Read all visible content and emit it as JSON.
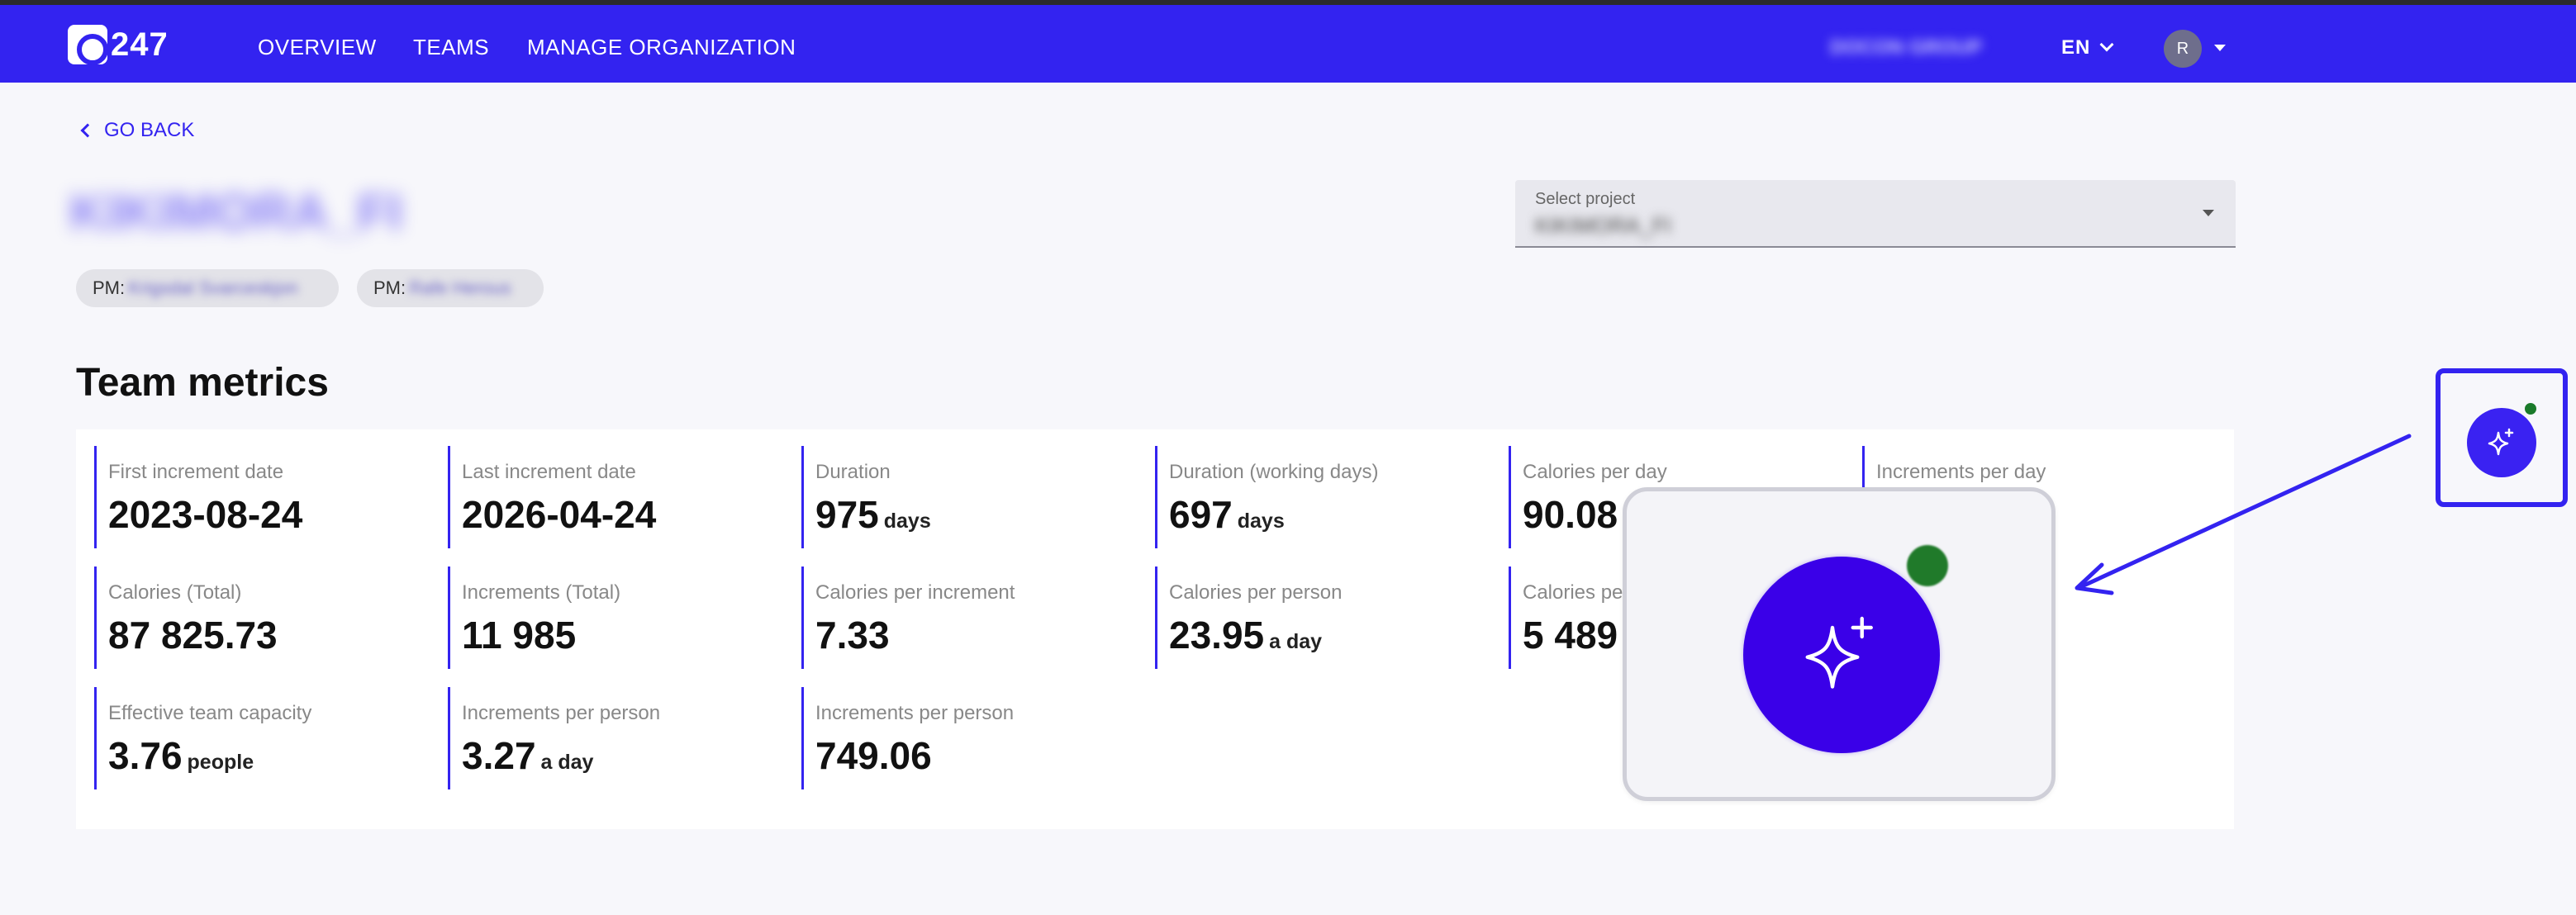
{
  "app": {
    "logo_text": "247"
  },
  "nav": {
    "items": [
      "OVERVIEW",
      "TEAMS",
      "MANAGE ORGANIZATION"
    ],
    "org": "DOCON GROUP",
    "lang": "EN",
    "avatar_initial": "R"
  },
  "header": {
    "go_back": "GO BACK",
    "project_title": "KIKIMORA_FI",
    "pm_prefix": "PM:",
    "pms": [
      "Krigsdal Svarceskjon",
      "Rafe Herous"
    ]
  },
  "select_project": {
    "label": "Select project",
    "value": "KIKIMORA_FI"
  },
  "metrics": {
    "title": "Team metrics",
    "items": [
      {
        "label": "First increment date",
        "value": "2023-08-24",
        "unit": ""
      },
      {
        "label": "Last increment date",
        "value": "2026-04-24",
        "unit": ""
      },
      {
        "label": "Duration",
        "value": "975",
        "unit": "days"
      },
      {
        "label": "Duration (working days)",
        "value": "697",
        "unit": "days"
      },
      {
        "label": "Calories per day",
        "value": "90.08",
        "unit": ""
      },
      {
        "label": "Increments per day",
        "value": "",
        "unit": ""
      },
      {
        "label": "Calories (Total)",
        "value": "87 825.73",
        "unit": ""
      },
      {
        "label": "Increments (Total)",
        "value": "11 985",
        "unit": ""
      },
      {
        "label": "Calories per increment",
        "value": "7.33",
        "unit": ""
      },
      {
        "label": "Calories per person",
        "value": "23.95",
        "unit": "a day"
      },
      {
        "label": "Calories pe",
        "value": "5 489",
        "unit": ""
      },
      {
        "label": "Effective team capacity",
        "value": "3.76",
        "unit": "people"
      },
      {
        "label": "Increments per person",
        "value": "3.27",
        "unit": "a day"
      },
      {
        "label": "Increments per person",
        "value": "749.06",
        "unit": ""
      }
    ]
  },
  "colors": {
    "brand": "#3323f0",
    "status_dot": "#1a7a2a",
    "background": "#f7f7fb"
  },
  "ai_button": {
    "icon": "sparkle-icon"
  }
}
